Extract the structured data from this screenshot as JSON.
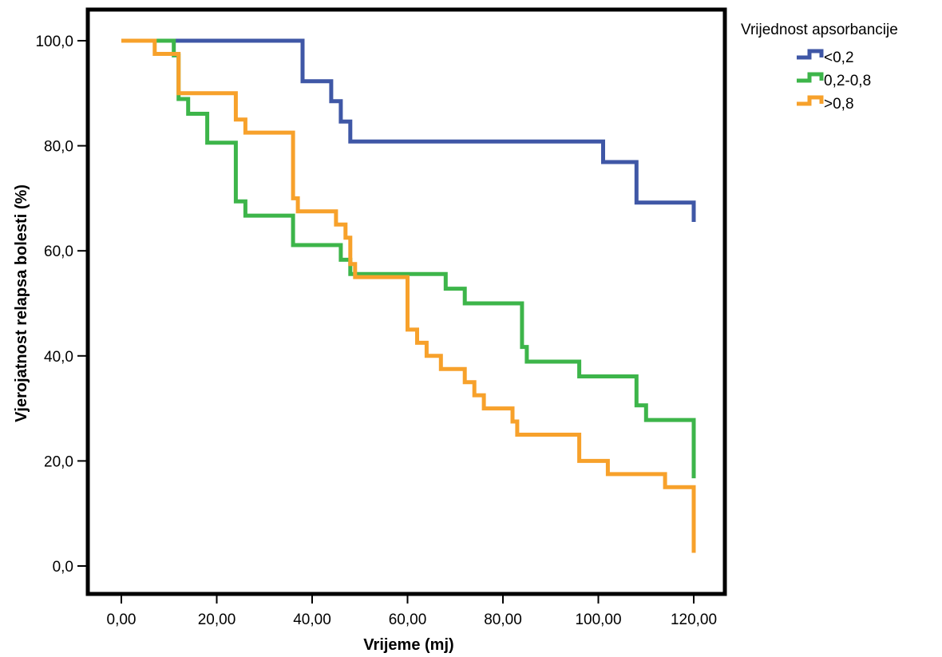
{
  "chart_data": {
    "type": "line",
    "step": true,
    "xlabel": "Vrijeme (mj)",
    "ylabel": "Vjerojatnost relapsa bolesti (%)",
    "xlim": [
      0,
      120
    ],
    "ylim": [
      0,
      100
    ],
    "x_ticks": [
      0,
      20,
      40,
      60,
      80,
      100,
      120
    ],
    "x_tick_labels": [
      "0,00",
      "20,00",
      "40,00",
      "60,00",
      "80,00",
      "100,00",
      "120,00"
    ],
    "y_ticks": [
      0,
      20,
      40,
      60,
      80,
      100
    ],
    "y_tick_labels": [
      "0,0",
      "20,0",
      "40,0",
      "60,0",
      "80,0",
      "100,0"
    ],
    "grid": false,
    "legend": {
      "title": "Vrijednost apsorbancije",
      "position": "right-top-outside"
    },
    "series": [
      {
        "name": "<0,2",
        "color": "#3F57A6",
        "points": [
          [
            0,
            100
          ],
          [
            38,
            100
          ],
          [
            38,
            92.3
          ],
          [
            44,
            92.3
          ],
          [
            44,
            88.5
          ],
          [
            46,
            88.5
          ],
          [
            46,
            84.6
          ],
          [
            48,
            84.6
          ],
          [
            48,
            80.8
          ],
          [
            101,
            80.8
          ],
          [
            101,
            76.9
          ],
          [
            108,
            76.9
          ],
          [
            108,
            69.2
          ],
          [
            120,
            69.2
          ],
          [
            120,
            65.5
          ]
        ]
      },
      {
        "name": "0,2-0,8",
        "color": "#3DB54A",
        "points": [
          [
            0,
            100
          ],
          [
            11,
            100
          ],
          [
            11,
            97.2
          ],
          [
            12,
            97.2
          ],
          [
            12,
            88.9
          ],
          [
            14,
            88.9
          ],
          [
            14,
            86.1
          ],
          [
            18,
            86.1
          ],
          [
            18,
            80.6
          ],
          [
            24,
            80.6
          ],
          [
            24,
            69.4
          ],
          [
            26,
            69.4
          ],
          [
            26,
            66.7
          ],
          [
            36,
            66.7
          ],
          [
            36,
            61.1
          ],
          [
            46,
            61.1
          ],
          [
            46,
            58.3
          ],
          [
            48,
            58.3
          ],
          [
            48,
            55.6
          ],
          [
            68,
            55.6
          ],
          [
            68,
            52.8
          ],
          [
            72,
            52.8
          ],
          [
            72,
            50.0
          ],
          [
            84,
            50.0
          ],
          [
            84,
            41.7
          ],
          [
            85,
            41.7
          ],
          [
            85,
            38.9
          ],
          [
            96,
            38.9
          ],
          [
            96,
            36.1
          ],
          [
            108,
            36.1
          ],
          [
            108,
            30.6
          ],
          [
            110,
            30.6
          ],
          [
            110,
            27.8
          ],
          [
            120,
            27.8
          ],
          [
            120,
            16.7
          ]
        ]
      },
      {
        "name": ">0,8",
        "color": "#F7A12B",
        "points": [
          [
            0,
            100
          ],
          [
            7,
            100
          ],
          [
            7,
            97.5
          ],
          [
            12,
            97.5
          ],
          [
            12,
            90.0
          ],
          [
            24,
            90.0
          ],
          [
            24,
            85.0
          ],
          [
            26,
            85.0
          ],
          [
            26,
            82.5
          ],
          [
            36,
            82.5
          ],
          [
            36,
            70.0
          ],
          [
            37,
            70.0
          ],
          [
            37,
            67.5
          ],
          [
            45,
            67.5
          ],
          [
            45,
            65.0
          ],
          [
            47,
            65.0
          ],
          [
            47,
            62.5
          ],
          [
            48,
            62.5
          ],
          [
            48,
            57.5
          ],
          [
            49,
            57.5
          ],
          [
            49,
            55.0
          ],
          [
            60,
            55.0
          ],
          [
            60,
            45.0
          ],
          [
            62,
            45.0
          ],
          [
            62,
            42.5
          ],
          [
            64,
            42.5
          ],
          [
            64,
            40.0
          ],
          [
            67,
            40.0
          ],
          [
            67,
            37.5
          ],
          [
            72,
            37.5
          ],
          [
            72,
            35.0
          ],
          [
            74,
            35.0
          ],
          [
            74,
            32.5
          ],
          [
            76,
            32.5
          ],
          [
            76,
            30.0
          ],
          [
            82,
            30.0
          ],
          [
            82,
            27.5
          ],
          [
            83,
            27.5
          ],
          [
            83,
            25.0
          ],
          [
            96,
            25.0
          ],
          [
            96,
            20.0
          ],
          [
            102,
            20.0
          ],
          [
            102,
            17.5
          ],
          [
            114,
            17.5
          ],
          [
            114,
            15.0
          ],
          [
            120,
            15.0
          ],
          [
            120,
            2.5
          ]
        ]
      }
    ]
  }
}
